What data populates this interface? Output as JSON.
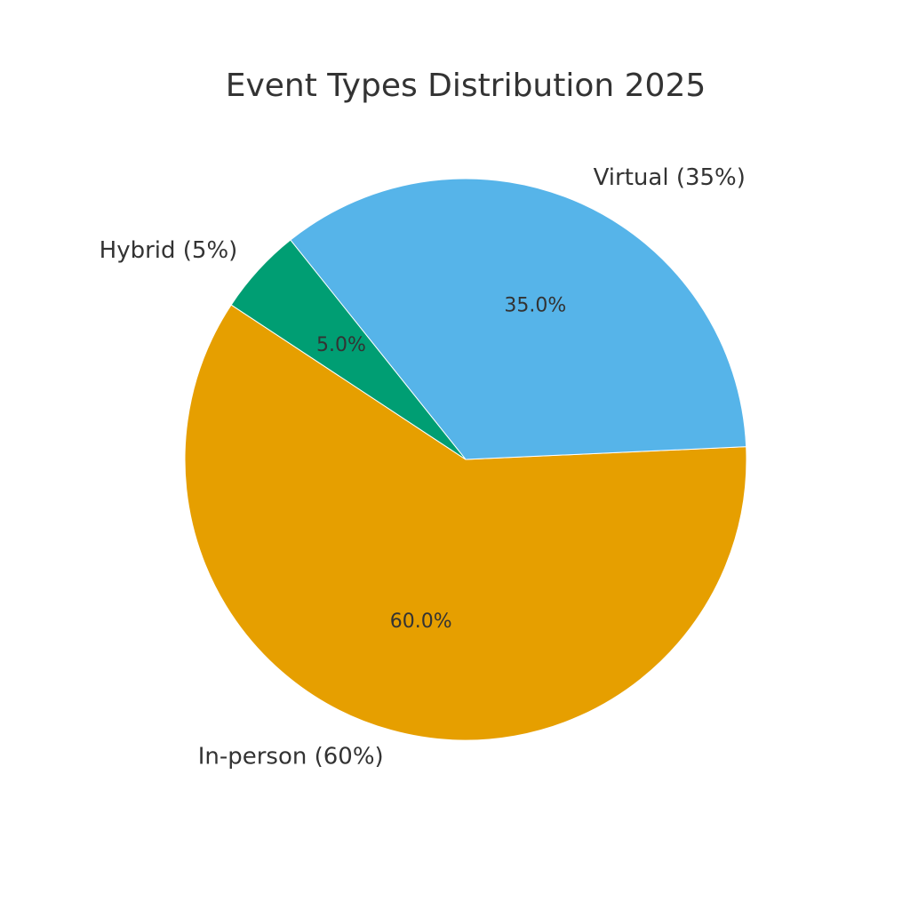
{
  "chart_data": {
    "type": "pie",
    "title": "Event Types Distribution 2025",
    "slices": [
      {
        "label": "In-person (60%)",
        "value": 60,
        "pct_label": "60.0%",
        "color": "#E69F00"
      },
      {
        "label": "Virtual (35%)",
        "value": 35,
        "pct_label": "35.0%",
        "color": "#56B4E9"
      },
      {
        "label": "Hybrid (5%)",
        "value": 5,
        "pct_label": "5.0%",
        "color": "#009E73"
      }
    ],
    "legend": "none"
  }
}
